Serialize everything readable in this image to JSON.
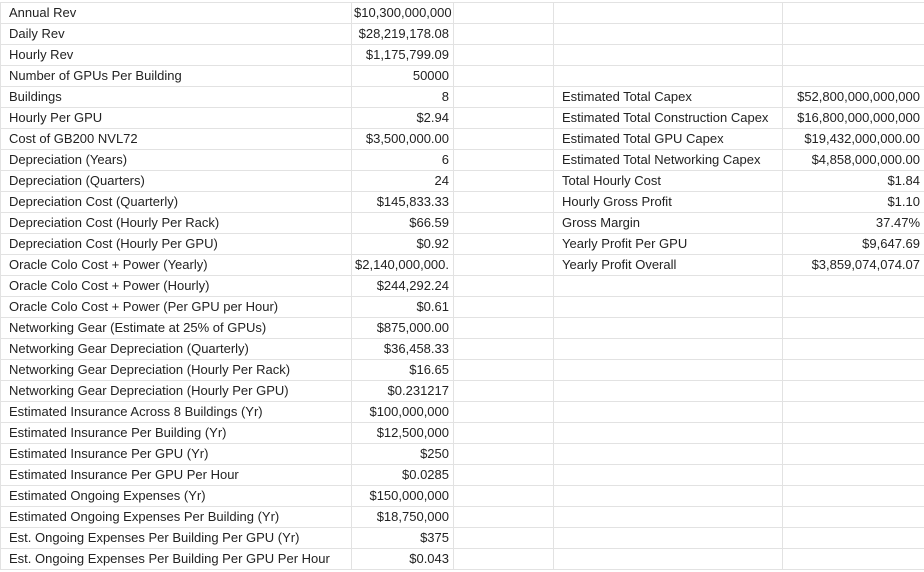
{
  "sheet": {
    "left_rows": [
      [
        "Annual Rev",
        "$10,300,000,000"
      ],
      [
        "Daily Rev",
        "$28,219,178.08"
      ],
      [
        "Hourly Rev",
        "$1,175,799.09"
      ],
      [
        "Number of GPUs Per Building",
        "50000"
      ],
      [
        "Buildings",
        "8"
      ],
      [
        "Hourly Per GPU",
        "$2.94"
      ],
      [
        "Cost of GB200 NVL72",
        "$3,500,000.00"
      ],
      [
        "Depreciation (Years)",
        "6"
      ],
      [
        "Depreciation (Quarters)",
        "24"
      ],
      [
        "Depreciation Cost (Quarterly)",
        "$145,833.33"
      ],
      [
        "Depreciation Cost (Hourly Per Rack)",
        "$66.59"
      ],
      [
        "Depreciation Cost (Hourly Per GPU)",
        "$0.92"
      ],
      [
        "Oracle Colo Cost + Power (Yearly)",
        "$2,140,000,000."
      ],
      [
        "Oracle Colo Cost + Power (Hourly)",
        "$244,292.24"
      ],
      [
        "Oracle Colo Cost + Power (Per GPU per Hour)",
        "$0.61"
      ],
      [
        "Networking Gear (Estimate at 25% of GPUs)",
        "$875,000.00"
      ],
      [
        "Networking Gear Depreciation (Quarterly)",
        "$36,458.33"
      ],
      [
        "Networking Gear Depreciation (Hourly Per Rack)",
        "$16.65"
      ],
      [
        "Networking Gear Depreciation (Hourly Per GPU)",
        "$0.231217"
      ],
      [
        "Estimated Insurance Across 8 Buildings (Yr)",
        "$100,000,000"
      ],
      [
        "Estimated Insurance Per Building (Yr)",
        "$12,500,000"
      ],
      [
        "Estimated Insurance Per GPU (Yr)",
        "$250"
      ],
      [
        "Estimated Insurance Per GPU Per Hour",
        "$0.0285"
      ],
      [
        "Estimated Ongoing Expenses (Yr)",
        "$150,000,000"
      ],
      [
        "Estimated Ongoing Expenses Per Building (Yr)",
        "$18,750,000"
      ],
      [
        "Est. Ongoing Expenses Per Building Per GPU (Yr)",
        "$375"
      ],
      [
        "Est. Ongoing Expenses Per Building Per GPU Per Hour",
        "$0.043"
      ]
    ],
    "right_rows": [
      [
        "Estimated Total Capex",
        "$52,800,000,000,000"
      ],
      [
        "Estimated Total Construction Capex",
        "$16,800,000,000,000"
      ],
      [
        "Estimated Total GPU Capex",
        "$19,432,000,000.00"
      ],
      [
        "Estimated Total Networking Capex",
        "$4,858,000,000.00"
      ],
      [
        "Total Hourly Cost",
        "$1.84"
      ],
      [
        "Hourly Gross Profit",
        "$1.10"
      ],
      [
        "Gross Margin",
        "37.47%"
      ],
      [
        "Yearly Profit Per GPU",
        "$9,647.69"
      ],
      [
        "Yearly Profit Overall",
        "$3,859,074,074.07"
      ]
    ]
  }
}
